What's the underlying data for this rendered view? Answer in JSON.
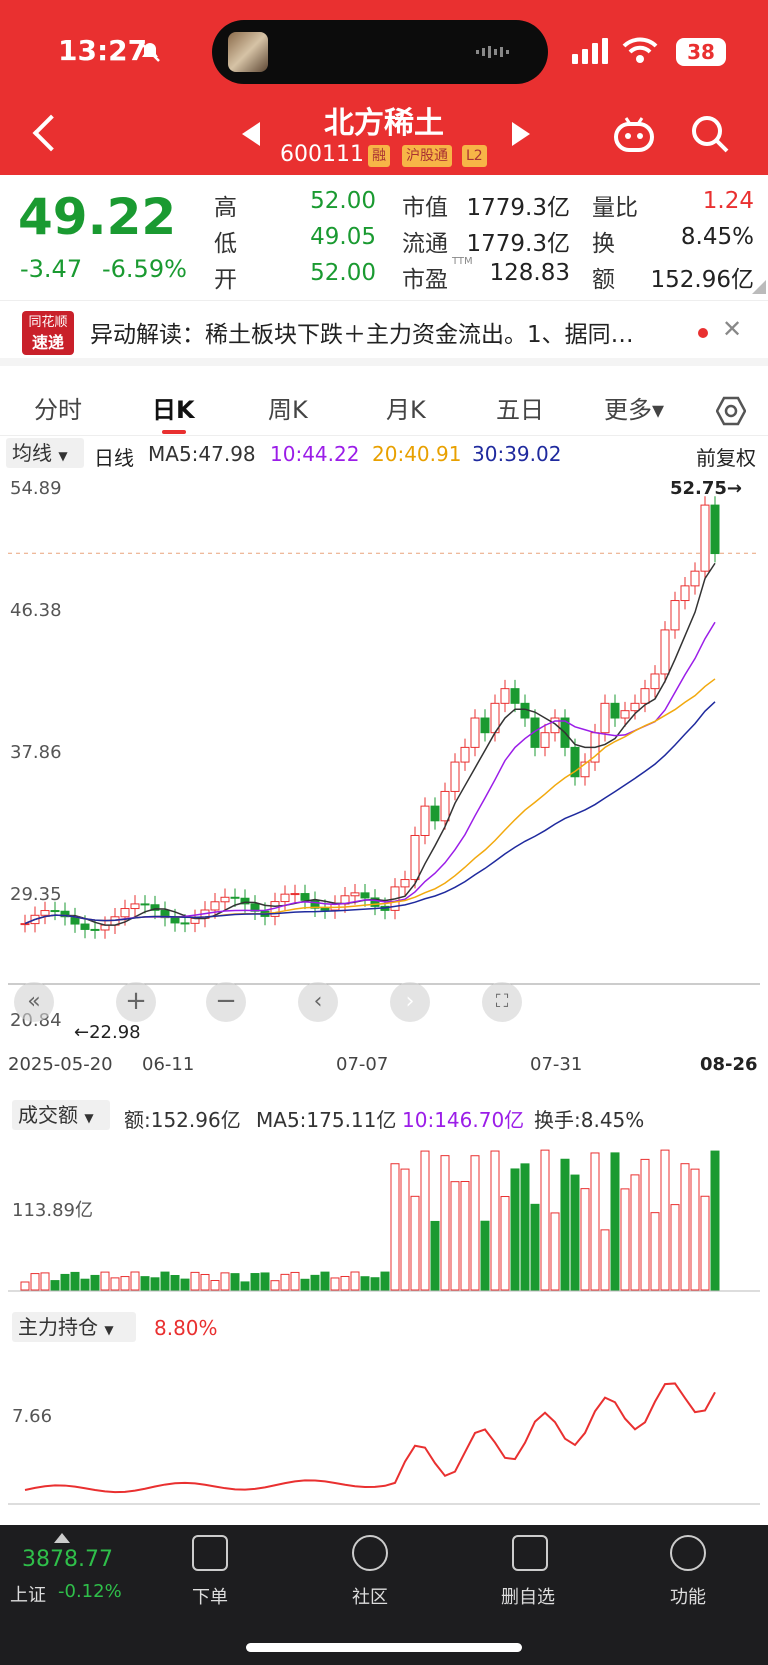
{
  "status": {
    "time": "13:27",
    "battery": "38"
  },
  "header": {
    "title": "北方稀土",
    "code": "600111",
    "tags": [
      "融",
      "沪股通",
      "L2"
    ]
  },
  "quote": {
    "price": "49.22",
    "change": "-3.47",
    "change_pct": "-6.59%",
    "high_label": "高",
    "high": "52.00",
    "low_label": "低",
    "low": "49.05",
    "open_label": "开",
    "open": "52.00",
    "mcap_label": "市值",
    "mcap": "1779.3亿",
    "float_label": "流通",
    "float": "1779.3亿",
    "pe_label": "市盈",
    "pe_sup": "TTM",
    "pe": "128.83",
    "vr_label": "量比",
    "vr": "1.24",
    "turn_label": "换",
    "turn": "8.45%",
    "amt_label": "额",
    "amt": "152.96亿"
  },
  "news": {
    "logo_top": "同花顺",
    "logo_bottom": "速递",
    "text": "异动解读：稀土板块下跌＋主力资金流出。1、据同…"
  },
  "tabs": [
    "分时",
    "日K",
    "周K",
    "月K",
    "五日",
    "更多▾"
  ],
  "kline": {
    "selector": "均线",
    "period": "日线",
    "ma5": "MA5:47.98",
    "ma10": "10:44.22",
    "ma20": "20:40.91",
    "ma30": "30:39.02",
    "adjust": "前复权",
    "y_labels": [
      "54.89",
      "46.38",
      "37.86",
      "29.35",
      "20.84"
    ],
    "x_labels": [
      "2025-05-20",
      "06-11",
      "07-07",
      "07-31",
      "08-26"
    ],
    "max_label": "52.75→",
    "min_label": "←22.98"
  },
  "volume": {
    "selector": "成交额",
    "amt": "额:152.96亿",
    "ma5": "MA5:175.11亿",
    "ma10": "10:146.70亿",
    "turnover": "换手:8.45%",
    "y_label": "113.89亿"
  },
  "holding": {
    "selector": "主力持仓",
    "value": "8.80%",
    "y_label": "7.66"
  },
  "bottom": {
    "index_value": "3878.77",
    "index_name": "上证",
    "index_change": "-0.12%",
    "items": [
      "下单",
      "社区",
      "删自选",
      "功能"
    ]
  },
  "colors": {
    "up": "#e93030",
    "down": "#1a9a31",
    "ma5": "#333333",
    "ma10": "#9b1de8",
    "ma20": "#f2a90e",
    "ma30": "#1f2a9e"
  }
}
